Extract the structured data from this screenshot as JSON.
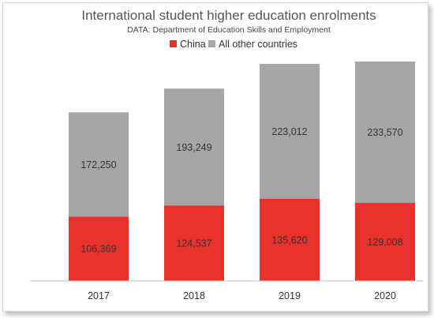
{
  "chart_data": {
    "type": "bar",
    "stacked": true,
    "title": "International student higher education enrolments",
    "subtitle": "DATA: Department of Education Skills and Employment",
    "categories": [
      "2017",
      "2018",
      "2019",
      "2020"
    ],
    "series": [
      {
        "name": "China",
        "color": "#e8322b",
        "values": [
          106369,
          124537,
          135620,
          129008
        ]
      },
      {
        "name": "All other countries",
        "color": "#a6a6a6",
        "values": [
          172250,
          193249,
          223012,
          233570
        ]
      }
    ],
    "data_labels": [
      [
        "106,369",
        "124,537",
        "135,620",
        "129,008"
      ],
      [
        "172,250",
        "193,249",
        "223,012",
        "233,570"
      ]
    ],
    "ylim": [
      0,
      400000
    ],
    "legend_position": "top",
    "grid": false,
    "y_axis_visible": false
  }
}
